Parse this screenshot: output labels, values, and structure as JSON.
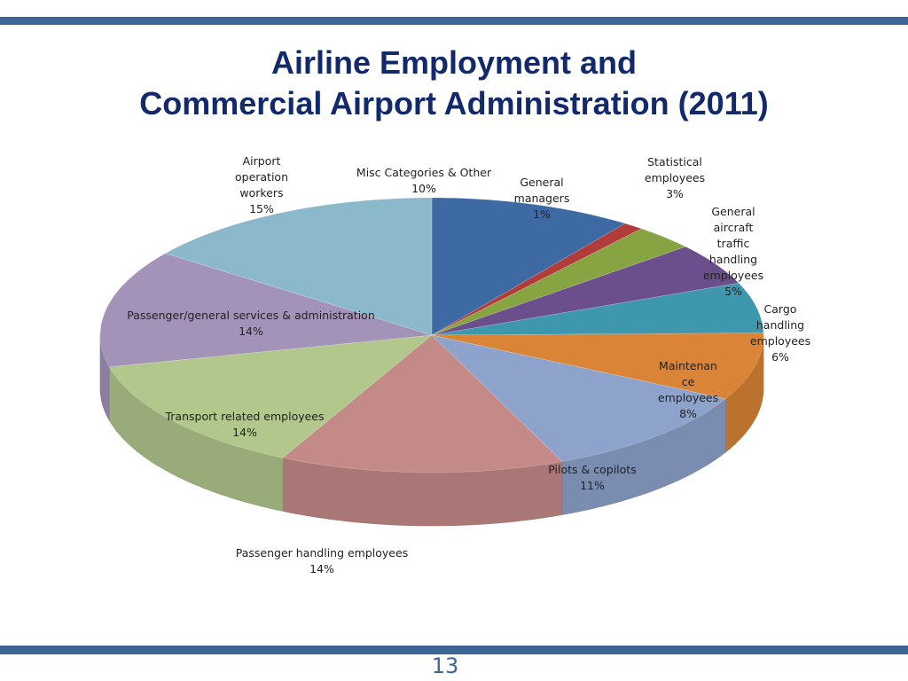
{
  "title_line1": "Airline Employment and",
  "title_line2": "Commercial Airport Administration (2011)",
  "page_number": "13",
  "colors": {
    "band": "#3d6596",
    "title": "#122a6b"
  },
  "chart_data": {
    "type": "pie",
    "title": "Airline Employment and Commercial Airport Administration (2011)",
    "slices": [
      {
        "label": "Misc Categories & Other",
        "label_lines": [
          "Misc Categories & Other"
        ],
        "value": 10,
        "pct_text": "10%",
        "color": "#3d6aa3"
      },
      {
        "label": "General managers",
        "label_lines": [
          "General",
          "managers"
        ],
        "value": 1,
        "pct_text": "1%",
        "color": "#b13c3a"
      },
      {
        "label": "Statistical employees",
        "label_lines": [
          "Statistical",
          "employees"
        ],
        "value": 3,
        "pct_text": "3%",
        "color": "#87a442"
      },
      {
        "label": "General aircraft traffic handling employees",
        "label_lines": [
          "General",
          "aircraft",
          "traffic",
          "handling",
          "employees"
        ],
        "value": 5,
        "pct_text": "5%",
        "color": "#6b4f8c"
      },
      {
        "label": "Cargo handling employees",
        "label_lines": [
          "Cargo",
          "handling",
          "employees"
        ],
        "value": 6,
        "pct_text": "6%",
        "color": "#3e97ad"
      },
      {
        "label": "Maintenance employees",
        "label_lines": [
          "Maintenan",
          "ce",
          "employees"
        ],
        "value": 8,
        "pct_text": "8%",
        "color": "#d98437"
      },
      {
        "label": "Pilots & copilots",
        "label_lines": [
          "Pilots & copilots"
        ],
        "value": 11,
        "pct_text": "11%",
        "color": "#8ea3cb"
      },
      {
        "label": "Passenger handling employees",
        "label_lines": [
          "Passenger handling employees"
        ],
        "value": 14,
        "pct_text": "14%",
        "color": "#c48a88"
      },
      {
        "label": "Transport related employees",
        "label_lines": [
          "Transport related employees"
        ],
        "value": 14,
        "pct_text": "14%",
        "color": "#b1c78c"
      },
      {
        "label": "Passenger/general services & administration",
        "label_lines": [
          "Passenger/general services & administration"
        ],
        "value": 14,
        "pct_text": "14%",
        "color": "#a393b9"
      },
      {
        "label": "Airport operation workers",
        "label_lines": [
          "Airport",
          "operation",
          "workers"
        ],
        "value": 15,
        "pct_text": "15%",
        "color": "#8bb9cb"
      }
    ],
    "legend": "none",
    "labels": "data labels with category name and percentage"
  }
}
